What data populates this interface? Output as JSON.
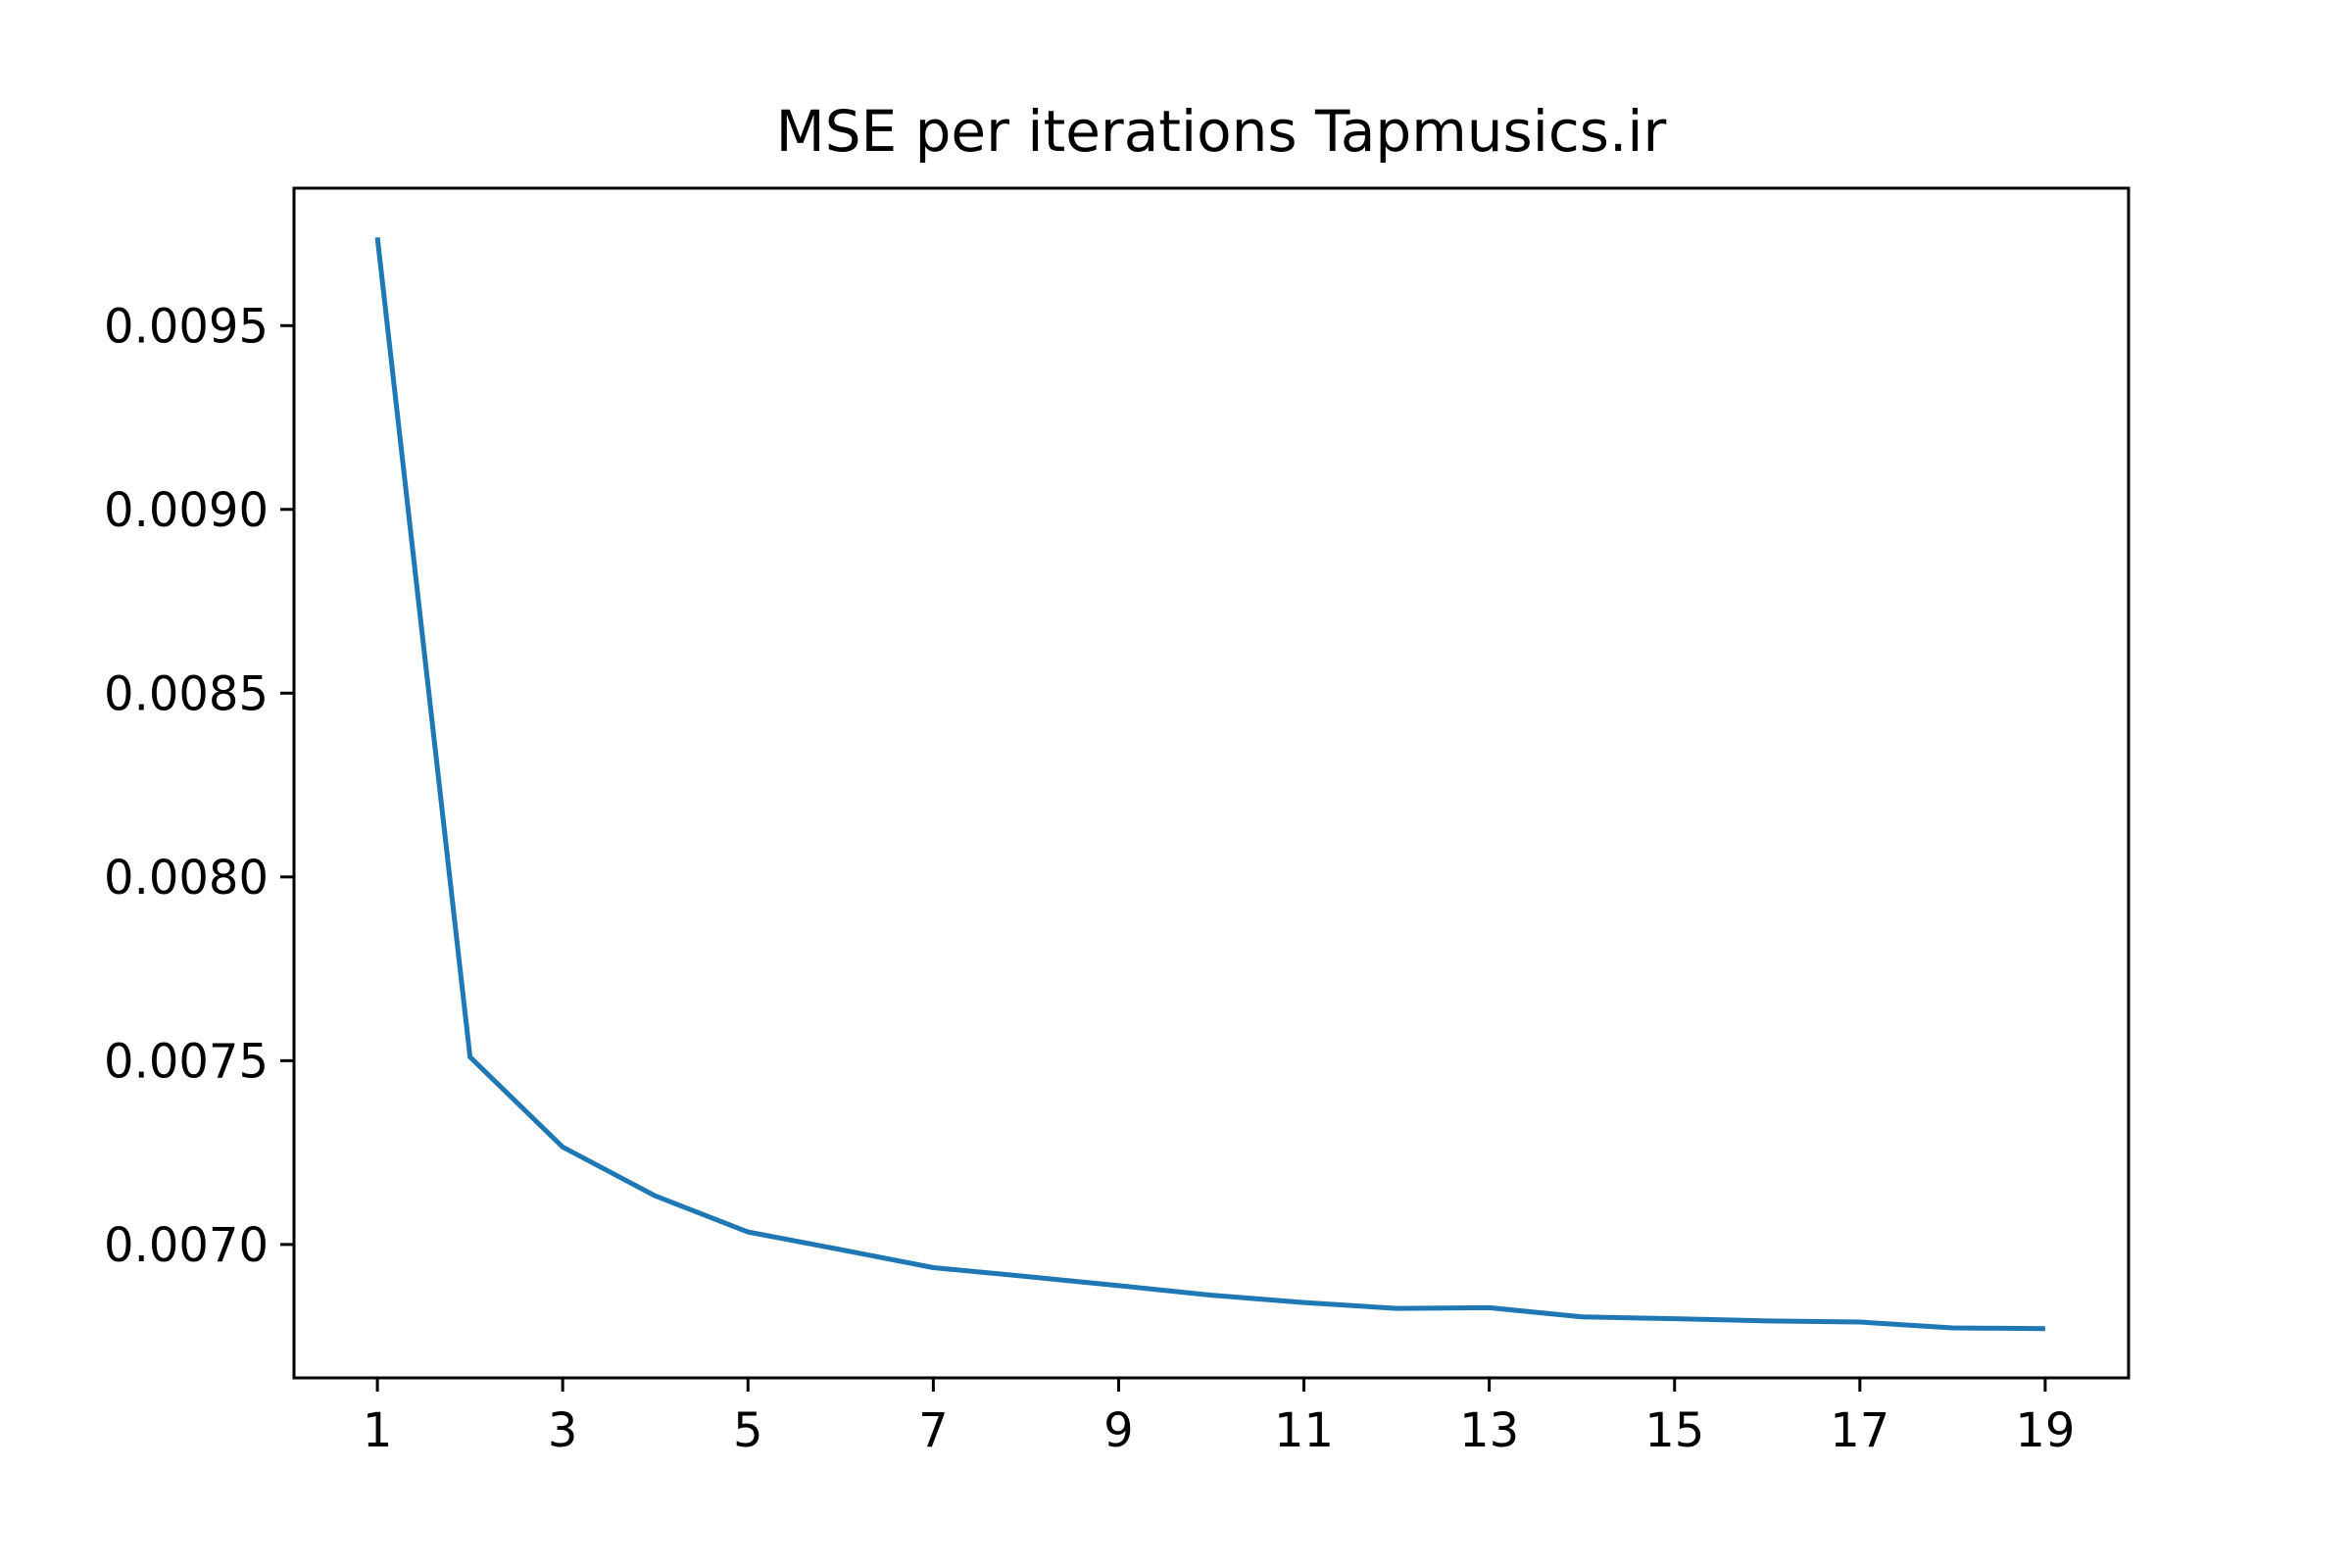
{
  "chart_data": {
    "type": "line",
    "title": "MSE per iterations Tapmusics.ir",
    "xlabel": "",
    "ylabel": "",
    "x": [
      1,
      2,
      3,
      4,
      5,
      6,
      7,
      8,
      9,
      10,
      11,
      12,
      13,
      14,
      15,
      16,
      17,
      18,
      19
    ],
    "series": [
      {
        "color": "#1f77b4",
        "values": [
          0.00974,
          0.00751,
          0.007265,
          0.007132,
          0.007034,
          0.006986,
          0.006937,
          0.006913,
          0.006888,
          0.006862,
          0.006842,
          0.006826,
          0.006828,
          0.006803,
          0.006798,
          0.006792,
          0.006789,
          0.006773,
          0.006771
        ]
      }
    ],
    "xticks": [
      "1",
      "3",
      "5",
      "7",
      "9",
      "11",
      "13",
      "15",
      "17",
      "19"
    ],
    "yticks": [
      "0.0070",
      "0.0075",
      "0.0080",
      "0.0085",
      "0.0090",
      "0.0095"
    ],
    "xlim": [
      0.1,
      19.9
    ],
    "ylim": [
      0.006637,
      0.009874
    ],
    "grid": false,
    "legend": "none"
  }
}
